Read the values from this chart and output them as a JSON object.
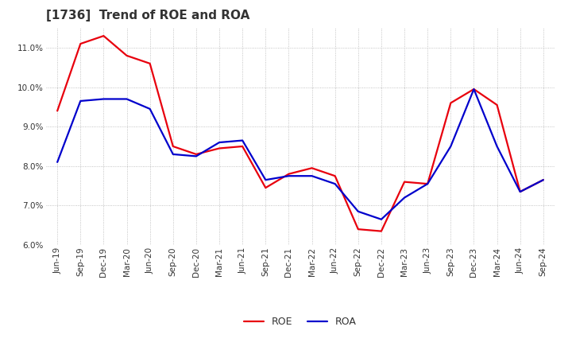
{
  "title": "[1736]  Trend of ROE and ROA",
  "labels": [
    "Jun-19",
    "Sep-19",
    "Dec-19",
    "Mar-20",
    "Jun-20",
    "Sep-20",
    "Dec-20",
    "Mar-21",
    "Jun-21",
    "Sep-21",
    "Dec-21",
    "Mar-22",
    "Jun-22",
    "Sep-22",
    "Dec-22",
    "Mar-23",
    "Jun-23",
    "Sep-23",
    "Dec-23",
    "Mar-24",
    "Jun-24",
    "Sep-24"
  ],
  "ROE": [
    9.4,
    11.1,
    11.3,
    10.8,
    10.6,
    8.5,
    8.3,
    8.45,
    8.5,
    7.45,
    7.8,
    7.95,
    7.75,
    6.4,
    6.35,
    7.6,
    7.55,
    9.6,
    9.95,
    9.55,
    7.35,
    7.65
  ],
  "ROA": [
    8.1,
    9.65,
    9.7,
    9.7,
    9.45,
    8.3,
    8.25,
    8.6,
    8.65,
    7.65,
    7.75,
    7.75,
    7.55,
    6.85,
    6.65,
    7.2,
    7.55,
    8.5,
    9.95,
    8.5,
    7.35,
    7.65
  ],
  "ROE_color": "#e8000d",
  "ROA_color": "#0000cc",
  "ylim": [
    6.0,
    11.5
  ],
  "yticks": [
    6.0,
    7.0,
    8.0,
    9.0,
    10.0,
    11.0
  ],
  "background_color": "#ffffff",
  "grid_color": "#aaaaaa",
  "title_fontsize": 11,
  "title_color": "#333333",
  "legend_fontsize": 9,
  "tick_fontsize": 7.5,
  "line_width": 1.6
}
